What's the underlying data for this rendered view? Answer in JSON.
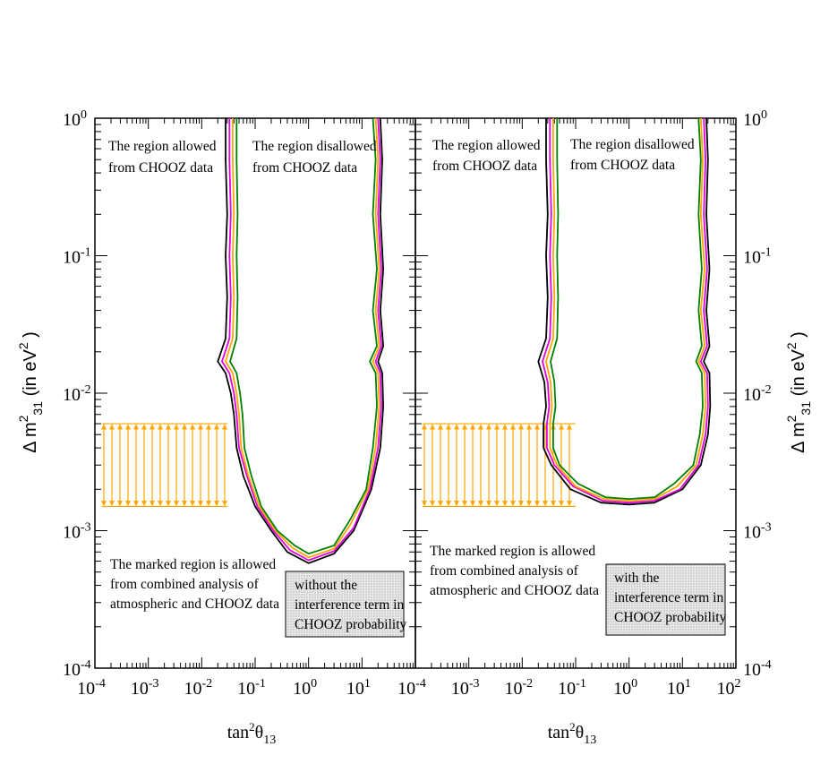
{
  "chart_data": [
    {
      "type": "line",
      "xlabel": "tan²θ₁₃",
      "ylabel": "Δ m²₃₁ (in eV²)",
      "xlim": [
        0.0001,
        100
      ],
      "ylim": [
        0.0001,
        1
      ],
      "xscale": "log",
      "yscale": "log",
      "x_ticks": [
        "10^-4",
        "10^-3",
        "10^-2",
        "10^-1",
        "10^0",
        "10^1",
        "10^2"
      ],
      "y_ticks": [
        "10^-4",
        "10^-3",
        "10^-2",
        "10^-1",
        "10^0"
      ],
      "annotations": {
        "allowed": [
          "The region allowed",
          "from CHOOZ data"
        ],
        "disallowed": [
          "The region disallowed",
          "from CHOOZ data"
        ],
        "marked": [
          "The marked region is allowed",
          "from combined analysis of",
          "atmospheric and CHOOZ data"
        ],
        "box": [
          "without the",
          "interference term in",
          "CHOOZ probability"
        ]
      },
      "marked_band": {
        "x": [
          0.0001,
          0.03
        ],
        "y": [
          0.0015,
          0.006
        ]
      },
      "series": [
        {
          "color": "#000000",
          "points": [
            [
              0.028,
              1
            ],
            [
              0.028,
              0.5
            ],
            [
              0.03,
              0.2
            ],
            [
              0.028,
              0.1
            ],
            [
              0.03,
              0.05
            ],
            [
              0.028,
              0.025
            ],
            [
              0.02,
              0.017
            ],
            [
              0.028,
              0.014
            ],
            [
              0.035,
              0.01
            ],
            [
              0.04,
              0.007
            ],
            [
              0.045,
              0.004
            ],
            [
              0.06,
              0.0025
            ],
            [
              0.1,
              0.0015
            ],
            [
              0.2,
              0.001
            ],
            [
              0.4,
              0.0007
            ],
            [
              1,
              0.00058
            ],
            [
              3,
              0.00068
            ],
            [
              7,
              0.001
            ],
            [
              15,
              0.002
            ],
            [
              22,
              0.004
            ],
            [
              25,
              0.008
            ],
            [
              24,
              0.014
            ],
            [
              20,
              0.017
            ],
            [
              25,
              0.022
            ],
            [
              22,
              0.04
            ],
            [
              25,
              0.08
            ],
            [
              22,
              0.2
            ],
            [
              24,
              0.5
            ],
            [
              22,
              1
            ]
          ]
        },
        {
          "color": "#e000e0",
          "points": [
            [
              0.033,
              1
            ],
            [
              0.033,
              0.5
            ],
            [
              0.035,
              0.2
            ],
            [
              0.033,
              0.1
            ],
            [
              0.035,
              0.05
            ],
            [
              0.033,
              0.025
            ],
            [
              0.024,
              0.017
            ],
            [
              0.033,
              0.014
            ],
            [
              0.04,
              0.01
            ],
            [
              0.045,
              0.007
            ],
            [
              0.05,
              0.004
            ],
            [
              0.07,
              0.0025
            ],
            [
              0.11,
              0.0015
            ],
            [
              0.22,
              0.001
            ],
            [
              0.45,
              0.00072
            ],
            [
              1,
              0.00061
            ],
            [
              3,
              0.00071
            ],
            [
              7,
              0.00105
            ],
            [
              14,
              0.002
            ],
            [
              20,
              0.004
            ],
            [
              23,
              0.008
            ],
            [
              22,
              0.014
            ],
            [
              18,
              0.017
            ],
            [
              23,
              0.022
            ],
            [
              20,
              0.04
            ],
            [
              23,
              0.08
            ],
            [
              20,
              0.2
            ],
            [
              22,
              0.5
            ],
            [
              20,
              1
            ]
          ]
        },
        {
          "color": "#ffa500",
          "points": [
            [
              0.038,
              1
            ],
            [
              0.038,
              0.5
            ],
            [
              0.04,
              0.2
            ],
            [
              0.038,
              0.1
            ],
            [
              0.04,
              0.05
            ],
            [
              0.038,
              0.025
            ],
            [
              0.028,
              0.017
            ],
            [
              0.038,
              0.014
            ],
            [
              0.045,
              0.01
            ],
            [
              0.05,
              0.007
            ],
            [
              0.055,
              0.004
            ],
            [
              0.075,
              0.0025
            ],
            [
              0.12,
              0.0015
            ],
            [
              0.24,
              0.001
            ],
            [
              0.5,
              0.00075
            ],
            [
              1,
              0.00064
            ],
            [
              3,
              0.00074
            ],
            [
              6,
              0.0011
            ],
            [
              13,
              0.002
            ],
            [
              18,
              0.004
            ],
            [
              21,
              0.008
            ],
            [
              20,
              0.014
            ],
            [
              16,
              0.017
            ],
            [
              21,
              0.022
            ],
            [
              18,
              0.04
            ],
            [
              21,
              0.08
            ],
            [
              18,
              0.2
            ],
            [
              20,
              0.5
            ],
            [
              18,
              1
            ]
          ]
        },
        {
          "color": "#008000",
          "points": [
            [
              0.045,
              1
            ],
            [
              0.045,
              0.5
            ],
            [
              0.047,
              0.2
            ],
            [
              0.045,
              0.1
            ],
            [
              0.047,
              0.05
            ],
            [
              0.045,
              0.025
            ],
            [
              0.034,
              0.017
            ],
            [
              0.045,
              0.014
            ],
            [
              0.052,
              0.01
            ],
            [
              0.058,
              0.007
            ],
            [
              0.063,
              0.004
            ],
            [
              0.085,
              0.0025
            ],
            [
              0.13,
              0.0015
            ],
            [
              0.26,
              0.001
            ],
            [
              0.55,
              0.00078
            ],
            [
              1,
              0.00068
            ],
            [
              3,
              0.00078
            ],
            [
              6,
              0.0012
            ],
            [
              12,
              0.002
            ],
            [
              16,
              0.004
            ],
            [
              19,
              0.008
            ],
            [
              18,
              0.014
            ],
            [
              14,
              0.017
            ],
            [
              19,
              0.022
            ],
            [
              16,
              0.04
            ],
            [
              19,
              0.08
            ],
            [
              16,
              0.2
            ],
            [
              18,
              0.5
            ],
            [
              16,
              1
            ]
          ]
        }
      ]
    },
    {
      "type": "line",
      "xlabel": "tan²θ₁₃",
      "ylabel": "Δ m²₃₁ (in eV²)",
      "xlim": [
        0.0001,
        100
      ],
      "ylim": [
        0.0001,
        1
      ],
      "xscale": "log",
      "yscale": "log",
      "x_ticks": [
        "10^-4",
        "10^-3",
        "10^-2",
        "10^-1",
        "10^0",
        "10^1",
        "10^2"
      ],
      "y_ticks": [
        "10^-4",
        "10^-3",
        "10^-2",
        "10^-1",
        "10^0"
      ],
      "annotations": {
        "allowed": [
          "The region allowed",
          "from CHOOZ data"
        ],
        "disallowed": [
          "The region disallowed",
          "from CHOOZ data"
        ],
        "marked": [
          "The marked region is allowed",
          "from combined analysis of",
          "atmospheric and CHOOZ data"
        ],
        "box": [
          "with the",
          "interference term in",
          "CHOOZ probability"
        ]
      },
      "marked_band": {
        "x": [
          0.0001,
          0.1
        ],
        "y": [
          0.0015,
          0.006
        ]
      },
      "series": [
        {
          "color": "#000000",
          "points": [
            [
              0.028,
              1
            ],
            [
              0.028,
              0.5
            ],
            [
              0.03,
              0.2
            ],
            [
              0.028,
              0.1
            ],
            [
              0.03,
              0.05
            ],
            [
              0.028,
              0.025
            ],
            [
              0.02,
              0.017
            ],
            [
              0.026,
              0.012
            ],
            [
              0.028,
              0.008
            ],
            [
              0.025,
              0.006
            ],
            [
              0.025,
              0.004
            ],
            [
              0.035,
              0.003
            ],
            [
              0.08,
              0.002
            ],
            [
              0.3,
              0.0016
            ],
            [
              1,
              0.00155
            ],
            [
              3,
              0.0016
            ],
            [
              10,
              0.002
            ],
            [
              22,
              0.003
            ],
            [
              30,
              0.005
            ],
            [
              33,
              0.008
            ],
            [
              32,
              0.014
            ],
            [
              25,
              0.017
            ],
            [
              32,
              0.022
            ],
            [
              28,
              0.04
            ],
            [
              32,
              0.08
            ],
            [
              28,
              0.2
            ],
            [
              30,
              0.5
            ],
            [
              28,
              1
            ]
          ]
        },
        {
          "color": "#e000e0",
          "points": [
            [
              0.033,
              1
            ],
            [
              0.033,
              0.5
            ],
            [
              0.035,
              0.2
            ],
            [
              0.033,
              0.1
            ],
            [
              0.035,
              0.05
            ],
            [
              0.033,
              0.025
            ],
            [
              0.024,
              0.017
            ],
            [
              0.03,
              0.012
            ],
            [
              0.032,
              0.008
            ],
            [
              0.029,
              0.006
            ],
            [
              0.029,
              0.004
            ],
            [
              0.04,
              0.003
            ],
            [
              0.09,
              0.0021
            ],
            [
              0.32,
              0.00165
            ],
            [
              1,
              0.0016
            ],
            [
              3,
              0.00165
            ],
            [
              9,
              0.002
            ],
            [
              20,
              0.003
            ],
            [
              27,
              0.005
            ],
            [
              30,
              0.008
            ],
            [
              29,
              0.014
            ],
            [
              22,
              0.017
            ],
            [
              29,
              0.022
            ],
            [
              25,
              0.04
            ],
            [
              29,
              0.08
            ],
            [
              25,
              0.2
            ],
            [
              27,
              0.5
            ],
            [
              25,
              1
            ]
          ]
        },
        {
          "color": "#ffa500",
          "points": [
            [
              0.038,
              1
            ],
            [
              0.038,
              0.5
            ],
            [
              0.04,
              0.2
            ],
            [
              0.038,
              0.1
            ],
            [
              0.04,
              0.05
            ],
            [
              0.038,
              0.025
            ],
            [
              0.028,
              0.017
            ],
            [
              0.034,
              0.012
            ],
            [
              0.036,
              0.008
            ],
            [
              0.033,
              0.006
            ],
            [
              0.033,
              0.004
            ],
            [
              0.045,
              0.003
            ],
            [
              0.1,
              0.0021
            ],
            [
              0.34,
              0.0017
            ],
            [
              1,
              0.00165
            ],
            [
              3,
              0.0017
            ],
            [
              8,
              0.0021
            ],
            [
              18,
              0.003
            ],
            [
              24,
              0.005
            ],
            [
              27,
              0.008
            ],
            [
              26,
              0.014
            ],
            [
              20,
              0.017
            ],
            [
              26,
              0.022
            ],
            [
              22,
              0.04
            ],
            [
              26,
              0.08
            ],
            [
              22,
              0.2
            ],
            [
              24,
              0.5
            ],
            [
              22,
              1
            ]
          ]
        },
        {
          "color": "#008000",
          "points": [
            [
              0.045,
              1
            ],
            [
              0.045,
              0.5
            ],
            [
              0.047,
              0.2
            ],
            [
              0.045,
              0.1
            ],
            [
              0.047,
              0.05
            ],
            [
              0.045,
              0.025
            ],
            [
              0.034,
              0.017
            ],
            [
              0.04,
              0.012
            ],
            [
              0.042,
              0.008
            ],
            [
              0.038,
              0.006
            ],
            [
              0.038,
              0.004
            ],
            [
              0.05,
              0.003
            ],
            [
              0.11,
              0.0022
            ],
            [
              0.36,
              0.00175
            ],
            [
              1,
              0.0017
            ],
            [
              3,
              0.00175
            ],
            [
              7,
              0.0022
            ],
            [
              16,
              0.003
            ],
            [
              21,
              0.005
            ],
            [
              24,
              0.008
            ],
            [
              23,
              0.014
            ],
            [
              18,
              0.017
            ],
            [
              23,
              0.022
            ],
            [
              20,
              0.04
            ],
            [
              23,
              0.08
            ],
            [
              20,
              0.2
            ],
            [
              22,
              0.5
            ],
            [
              20,
              1
            ]
          ]
        }
      ]
    }
  ]
}
